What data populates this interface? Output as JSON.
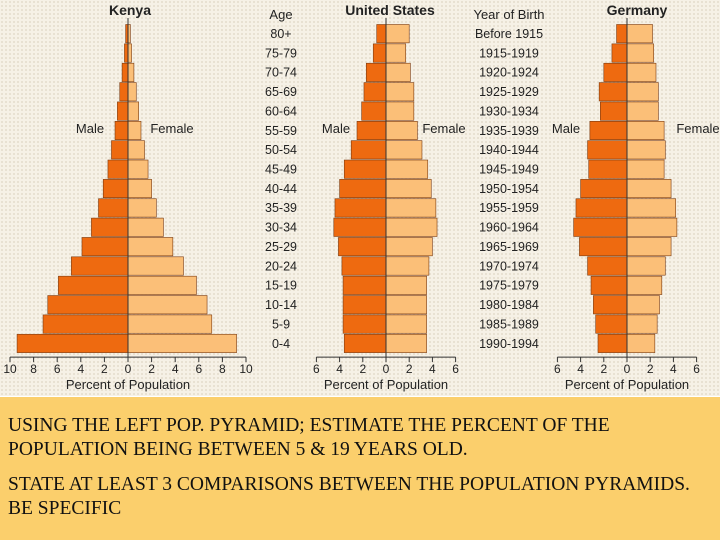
{
  "chart_data": [
    {
      "type": "bar",
      "title": "Kenya",
      "male_label": "Male",
      "female_label": "Female",
      "xlabel": "Percent of Population",
      "xticks": [
        "10",
        "8",
        "6",
        "4",
        "2",
        "0",
        "2",
        "4",
        "6",
        "8",
        "10"
      ],
      "xlim": [
        -10,
        10
      ],
      "categories": [
        "0-4",
        "5-9",
        "10-14",
        "15-19",
        "20-24",
        "25-29",
        "30-34",
        "35-39",
        "40-44",
        "45-49",
        "50-54",
        "55-59",
        "60-64",
        "65-69",
        "70-74",
        "75-79",
        "80+"
      ],
      "series": [
        {
          "name": "Male",
          "values": [
            9.4,
            7.2,
            6.8,
            5.9,
            4.8,
            3.9,
            3.1,
            2.5,
            2.1,
            1.7,
            1.4,
            1.1,
            0.9,
            0.7,
            0.5,
            0.3,
            0.2
          ]
        },
        {
          "name": "Female",
          "values": [
            9.2,
            7.1,
            6.7,
            5.8,
            4.7,
            3.8,
            3.0,
            2.4,
            2.0,
            1.7,
            1.4,
            1.1,
            0.9,
            0.7,
            0.5,
            0.3,
            0.2
          ]
        }
      ]
    },
    {
      "type": "bar",
      "title": "United States",
      "male_label": "Male",
      "female_label": "Female",
      "xlabel": "Percent of Population",
      "xticks": [
        "6",
        "4",
        "2",
        "0",
        "2",
        "4",
        "6"
      ],
      "xlim": [
        -6,
        6
      ],
      "categories": [
        "0-4",
        "5-9",
        "10-14",
        "15-19",
        "20-24",
        "25-29",
        "30-34",
        "35-39",
        "40-44",
        "45-49",
        "50-54",
        "55-59",
        "60-64",
        "65-69",
        "70-74",
        "75-79",
        "80+"
      ],
      "series": [
        {
          "name": "Male",
          "values": [
            3.6,
            3.7,
            3.7,
            3.7,
            3.8,
            4.1,
            4.5,
            4.4,
            4.0,
            3.6,
            3.0,
            2.5,
            2.1,
            1.9,
            1.7,
            1.1,
            0.8
          ]
        },
        {
          "name": "Female",
          "values": [
            3.5,
            3.5,
            3.5,
            3.5,
            3.7,
            4.0,
            4.4,
            4.3,
            3.9,
            3.6,
            3.1,
            2.7,
            2.4,
            2.4,
            2.1,
            1.7,
            2.0
          ]
        }
      ]
    },
    {
      "type": "bar",
      "title": "Germany",
      "male_label": "Male",
      "female_label": "Female",
      "xlabel": "Percent of Population",
      "xticks": [
        "6",
        "4",
        "2",
        "0",
        "2",
        "4",
        "6"
      ],
      "xlim": [
        -6,
        6
      ],
      "categories": [
        "0-4",
        "5-9",
        "10-14",
        "15-19",
        "20-24",
        "25-29",
        "30-34",
        "35-39",
        "40-44",
        "45-49",
        "50-54",
        "55-59",
        "60-64",
        "65-69",
        "70-74",
        "75-79",
        "80+"
      ],
      "series": [
        {
          "name": "Male",
          "values": [
            2.5,
            2.7,
            2.9,
            3.1,
            3.4,
            4.1,
            4.6,
            4.4,
            4.0,
            3.3,
            3.4,
            3.2,
            2.3,
            2.4,
            2.0,
            1.3,
            0.9
          ]
        },
        {
          "name": "Female",
          "values": [
            2.4,
            2.6,
            2.8,
            3.0,
            3.3,
            3.8,
            4.3,
            4.2,
            3.8,
            3.2,
            3.3,
            3.2,
            2.7,
            2.7,
            2.5,
            2.3,
            2.2
          ]
        }
      ]
    }
  ],
  "center_labels": {
    "age_header": "Age",
    "ages": [
      "80+",
      "75-79",
      "70-74",
      "65-69",
      "60-64",
      "55-59",
      "50-54",
      "45-49",
      "40-44",
      "35-39",
      "30-34",
      "25-29",
      "20-24",
      "15-19",
      "10-14",
      "5-9",
      "0-4"
    ],
    "birth_header": "Year of Birth",
    "births": [
      "Before 1915",
      "1915-1919",
      "1920-1924",
      "1925-1929",
      "1930-1934",
      "1935-1939",
      "1940-1944",
      "1945-1949",
      "1950-1954",
      "1955-1959",
      "1960-1964",
      "1965-1969",
      "1970-1974",
      "1975-1979",
      "1980-1984",
      "1985-1989",
      "1990-1994"
    ]
  },
  "colors": {
    "male": "#ee6a10",
    "female": "#fbbf78",
    "outline": "#7a3a10",
    "prompt_bg": "#fbcf6c"
  },
  "prompt": {
    "question1": "USING THE LEFT POP. PYRAMID; ESTIMATE THE PERCENT OF THE POPULATION BEING BETWEEN 5 & 19 YEARS OLD.",
    "question2": "STATE AT LEAST 3 COMPARISONS BETWEEN THE POPULATION PYRAMIDS. BE SPECIFIC"
  }
}
